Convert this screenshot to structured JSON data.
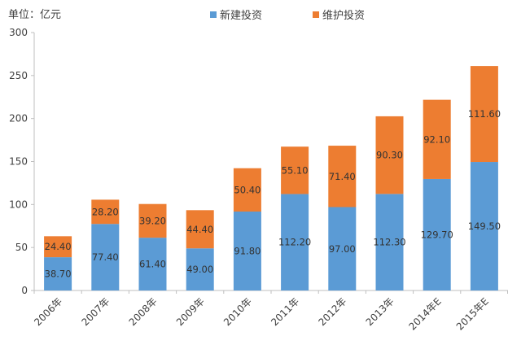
{
  "chart_data": {
    "type": "bar",
    "stacked": true,
    "unit_label": "单位：亿元",
    "categories": [
      "2006年",
      "2007年",
      "2008年",
      "2009年",
      "2010年",
      "2011年",
      "2012年",
      "2013年",
      "2014年E",
      "2015年E"
    ],
    "series": [
      {
        "name": "新建投资",
        "color": "#5b9bd5",
        "values": [
          38.7,
          77.4,
          61.4,
          49.0,
          91.8,
          112.2,
          97.0,
          112.3,
          129.7,
          149.5
        ],
        "labels": [
          "38.70",
          "77.40",
          "61.40",
          "49.00",
          "91.80",
          "112.20",
          "97.00",
          "112.30",
          "129.70",
          "149.50"
        ]
      },
      {
        "name": "维护投资",
        "color": "#ed7d31",
        "values": [
          24.4,
          28.2,
          39.2,
          44.4,
          50.4,
          55.1,
          71.4,
          90.3,
          92.1,
          111.6
        ],
        "labels": [
          "24.40",
          "28.20",
          "39.20",
          "44.40",
          "50.40",
          "55.10",
          "71.40",
          "90.30",
          "92.10",
          "111.60"
        ]
      }
    ],
    "ylim": [
      0,
      300
    ],
    "yticks": [
      0,
      50,
      100,
      150,
      200,
      250,
      300
    ],
    "grid": false,
    "legend_position": "top"
  }
}
